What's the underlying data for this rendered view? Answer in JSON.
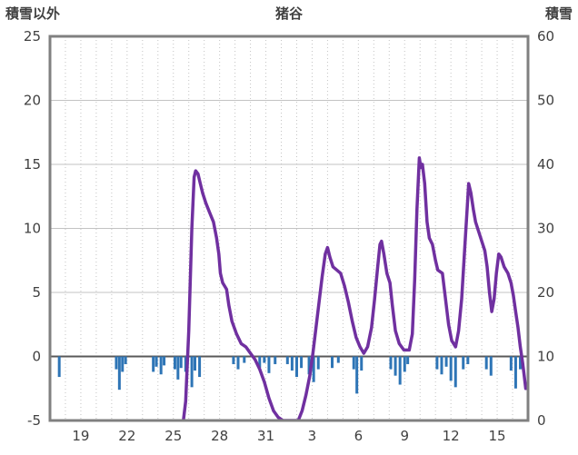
{
  "chart_data": {
    "type": "combo",
    "title": "猪谷",
    "left_axis": {
      "label": "積雪以外",
      "range": [
        -5,
        25
      ],
      "ticks": [
        -5,
        0,
        5,
        10,
        15,
        20,
        25
      ]
    },
    "right_axis": {
      "label": "積雪",
      "range": [
        0,
        60
      ],
      "ticks": [
        0,
        10,
        20,
        30,
        40,
        50,
        60
      ]
    },
    "x_axis": {
      "range": [
        0,
        31
      ],
      "tick_positions": [
        2,
        5,
        8,
        11,
        14,
        17,
        20,
        23,
        26,
        29
      ],
      "tick_labels": [
        "19",
        "22",
        "25",
        "28",
        "31",
        "3",
        "6",
        "9",
        "12",
        "15"
      ]
    },
    "grid": true,
    "legend": "none",
    "colors": {
      "line": "#7030A0",
      "bars": "#2E75B6",
      "frame": "#808080",
      "grid": "#C3C3C3",
      "zero_line": "#595959",
      "text": "#404040"
    },
    "series": [
      {
        "name": "積雪",
        "type": "line",
        "axis": "right",
        "points": [
          [
            8.65,
            0
          ],
          [
            8.8,
            3
          ],
          [
            9.0,
            14
          ],
          [
            9.2,
            30
          ],
          [
            9.35,
            38
          ],
          [
            9.45,
            39
          ],
          [
            9.6,
            38.5
          ],
          [
            9.75,
            37
          ],
          [
            9.9,
            35.5
          ],
          [
            10.1,
            34
          ],
          [
            10.35,
            32.5
          ],
          [
            10.6,
            31
          ],
          [
            10.8,
            28.5
          ],
          [
            10.95,
            26
          ],
          [
            11.05,
            23
          ],
          [
            11.2,
            21.5
          ],
          [
            11.45,
            20.5
          ],
          [
            11.6,
            18
          ],
          [
            11.8,
            15.5
          ],
          [
            12.1,
            13.5
          ],
          [
            12.4,
            12
          ],
          [
            12.7,
            11.5
          ],
          [
            13.0,
            10.5
          ],
          [
            13.3,
            9.5
          ],
          [
            13.6,
            8
          ],
          [
            13.9,
            6
          ],
          [
            14.2,
            3.5
          ],
          [
            14.5,
            1.5
          ],
          [
            14.8,
            0.5
          ],
          [
            15.1,
            0
          ],
          [
            16.1,
            0
          ],
          [
            16.35,
            1.5
          ],
          [
            16.6,
            4
          ],
          [
            16.85,
            7
          ],
          [
            17.05,
            10.5
          ],
          [
            17.25,
            14.5
          ],
          [
            17.45,
            18.5
          ],
          [
            17.65,
            22.5
          ],
          [
            17.85,
            26
          ],
          [
            18.0,
            27
          ],
          [
            18.15,
            25.5
          ],
          [
            18.35,
            24
          ],
          [
            18.6,
            23.5
          ],
          [
            18.85,
            23
          ],
          [
            19.1,
            21
          ],
          [
            19.35,
            18.5
          ],
          [
            19.6,
            15.5
          ],
          [
            19.85,
            13
          ],
          [
            20.1,
            11.5
          ],
          [
            20.35,
            10.5
          ],
          [
            20.6,
            11.5
          ],
          [
            20.85,
            14.5
          ],
          [
            21.05,
            19
          ],
          [
            21.25,
            24
          ],
          [
            21.4,
            27.5
          ],
          [
            21.5,
            28
          ],
          [
            21.65,
            26
          ],
          [
            21.85,
            23
          ],
          [
            22.05,
            21.5
          ],
          [
            22.2,
            18
          ],
          [
            22.4,
            14
          ],
          [
            22.65,
            12
          ],
          [
            22.95,
            11
          ],
          [
            23.3,
            11
          ],
          [
            23.5,
            13.5
          ],
          [
            23.65,
            22
          ],
          [
            23.8,
            33
          ],
          [
            23.95,
            41
          ],
          [
            24.05,
            39.5
          ],
          [
            24.15,
            40
          ],
          [
            24.3,
            37
          ],
          [
            24.45,
            31
          ],
          [
            24.6,
            28.5
          ],
          [
            24.8,
            27.5
          ],
          [
            25.0,
            25
          ],
          [
            25.15,
            23.5
          ],
          [
            25.45,
            23
          ],
          [
            25.65,
            19
          ],
          [
            25.85,
            15
          ],
          [
            26.05,
            12.5
          ],
          [
            26.3,
            11.5
          ],
          [
            26.5,
            14
          ],
          [
            26.7,
            19
          ],
          [
            26.9,
            27
          ],
          [
            27.05,
            33
          ],
          [
            27.15,
            37
          ],
          [
            27.3,
            35.5
          ],
          [
            27.45,
            33
          ],
          [
            27.6,
            31
          ],
          [
            27.8,
            29.5
          ],
          [
            28.0,
            28
          ],
          [
            28.2,
            26.5
          ],
          [
            28.35,
            24
          ],
          [
            28.5,
            20
          ],
          [
            28.65,
            17
          ],
          [
            28.8,
            19
          ],
          [
            28.95,
            23
          ],
          [
            29.1,
            26
          ],
          [
            29.25,
            25.5
          ],
          [
            29.45,
            24
          ],
          [
            29.7,
            23
          ],
          [
            29.9,
            21.5
          ],
          [
            30.05,
            19.5
          ],
          [
            30.2,
            17
          ],
          [
            30.35,
            14.5
          ],
          [
            30.5,
            11.5
          ],
          [
            30.65,
            9
          ],
          [
            30.75,
            7
          ],
          [
            30.85,
            5
          ]
        ]
      },
      {
        "name": "積雪以外",
        "type": "bar",
        "axis": "left",
        "points": [
          [
            0.6,
            -1.6
          ],
          [
            4.3,
            -1.0
          ],
          [
            4.5,
            -2.6
          ],
          [
            4.7,
            -1.2
          ],
          [
            4.9,
            -0.6
          ],
          [
            6.7,
            -1.2
          ],
          [
            6.9,
            -0.8
          ],
          [
            7.2,
            -1.4
          ],
          [
            7.4,
            -0.7
          ],
          [
            8.1,
            -1.0
          ],
          [
            8.3,
            -1.8
          ],
          [
            8.5,
            -0.9
          ],
          [
            8.8,
            -1.2
          ],
          [
            9.2,
            -2.4
          ],
          [
            9.4,
            -1.1
          ],
          [
            9.7,
            -1.6
          ],
          [
            11.9,
            -0.6
          ],
          [
            12.2,
            -1.0
          ],
          [
            12.6,
            -0.5
          ],
          [
            13.6,
            -0.9
          ],
          [
            13.9,
            -0.5
          ],
          [
            14.2,
            -1.3
          ],
          [
            14.6,
            -0.6
          ],
          [
            15.4,
            -0.6
          ],
          [
            15.7,
            -1.1
          ],
          [
            16.0,
            -1.6
          ],
          [
            16.3,
            -0.9
          ],
          [
            16.8,
            -1.4
          ],
          [
            17.1,
            -2.0
          ],
          [
            17.4,
            -1.0
          ],
          [
            18.3,
            -0.9
          ],
          [
            18.7,
            -0.5
          ],
          [
            19.7,
            -1.0
          ],
          [
            19.9,
            -2.9
          ],
          [
            20.2,
            -1.1
          ],
          [
            22.1,
            -1.0
          ],
          [
            22.4,
            -1.5
          ],
          [
            22.7,
            -2.2
          ],
          [
            23.0,
            -1.2
          ],
          [
            23.2,
            -0.6
          ],
          [
            25.1,
            -1.0
          ],
          [
            25.4,
            -1.4
          ],
          [
            25.7,
            -0.8
          ],
          [
            26.0,
            -1.9
          ],
          [
            26.3,
            -2.4
          ],
          [
            26.8,
            -1.0
          ],
          [
            27.1,
            -0.6
          ],
          [
            28.3,
            -1.0
          ],
          [
            28.6,
            -1.5
          ],
          [
            29.9,
            -1.1
          ],
          [
            30.2,
            -2.5
          ],
          [
            30.5,
            -1.0
          ]
        ]
      }
    ]
  }
}
